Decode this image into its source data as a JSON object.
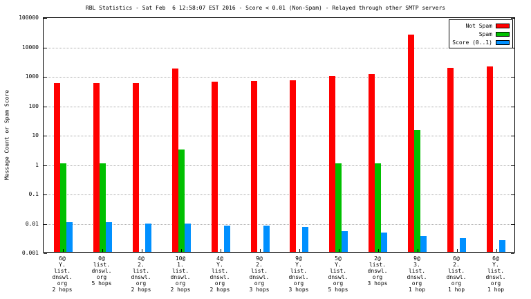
{
  "chart_data": {
    "type": "bar",
    "title": "RBL Statistics - Sat Feb  6 12:58:07 EST 2016 - Score < 0.01 (Non-Spam) - Relayed through other SMTP servers",
    "ylabel": "Message Count or Spam Score",
    "yscale": "log",
    "ylim": [
      0.001,
      100000
    ],
    "ytick_labels": [
      "0.001",
      "0.01",
      "0.1",
      "1",
      "10",
      "100",
      "1000",
      "10000",
      "100000"
    ],
    "grid": true,
    "legend_position": "top-right-inside",
    "categories": [
      [
        "6@",
        "Y.",
        "list.",
        "dnswl.",
        "org",
        "2 hops"
      ],
      [
        "0@",
        "list.",
        "dnswl.",
        "org",
        "5 hops"
      ],
      [
        "4@",
        "2.",
        "list.",
        "dnswl.",
        "org",
        "2 hops"
      ],
      [
        "10@",
        "1.",
        "list.",
        "dnswl.",
        "org",
        "2 hops"
      ],
      [
        "4@",
        "Y.",
        "list.",
        "dnswl.",
        "org",
        "2 hops"
      ],
      [
        "9@",
        "2.",
        "list.",
        "dnswl.",
        "org",
        "3 hops"
      ],
      [
        "9@",
        "Y.",
        "list.",
        "dnswl.",
        "org",
        "3 hops"
      ],
      [
        "5@",
        "Y.",
        "list.",
        "dnswl.",
        "org",
        "5 hops"
      ],
      [
        "2@",
        "list.",
        "dnswl.",
        "org",
        "3 hops"
      ],
      [
        "9@",
        "3.",
        "list.",
        "dnswl.",
        "org",
        "1 hop"
      ],
      [
        "6@",
        "2.",
        "list.",
        "dnswl.",
        "org",
        "1 hop"
      ],
      [
        "6@",
        "Y.",
        "list.",
        "dnswl.",
        "org",
        "1 hop"
      ]
    ],
    "series": [
      {
        "name": "Not Spam",
        "color": "#ff0000",
        "values": [
          550,
          550,
          550,
          1700,
          600,
          650,
          700,
          950,
          1100,
          25000,
          1800,
          2000
        ]
      },
      {
        "name": "Spam",
        "color": "#00c000",
        "values": [
          1,
          1,
          null,
          3,
          null,
          null,
          null,
          1,
          1,
          14,
          null,
          null
        ]
      },
      {
        "name": "Score (0..1)",
        "color": "#0090ff",
        "values": [
          0.01,
          0.01,
          0.009,
          0.009,
          0.008,
          0.008,
          0.007,
          0.005,
          0.0045,
          0.0035,
          0.003,
          0.0025
        ]
      }
    ]
  }
}
